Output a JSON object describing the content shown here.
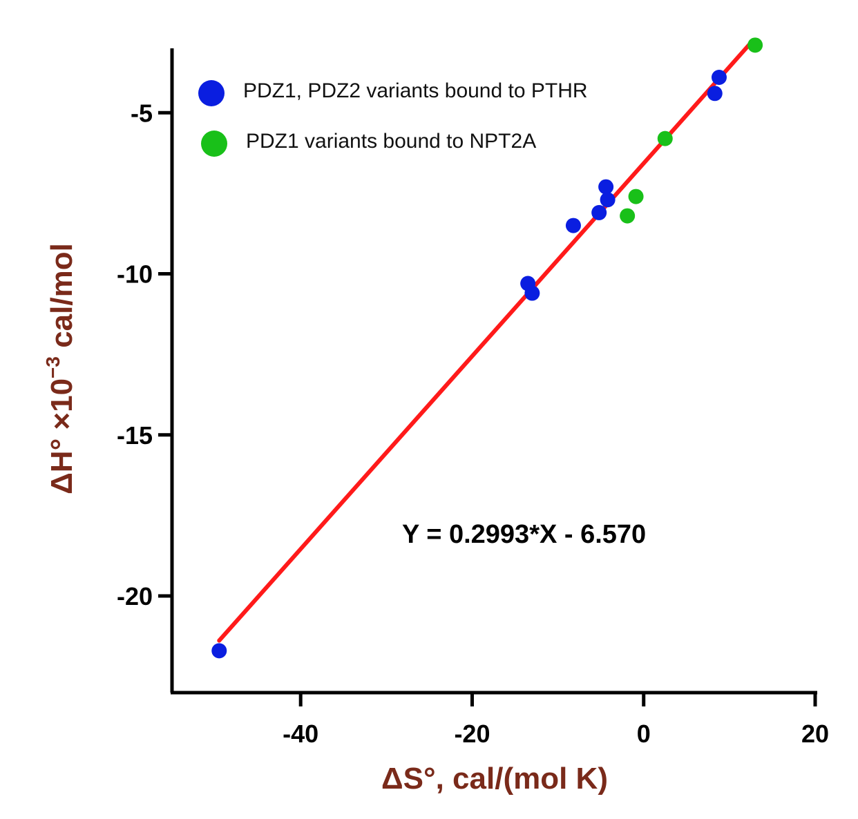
{
  "chart_data": {
    "type": "scatter",
    "title": "",
    "xlabel": "ΔS°, cal/(mol K)",
    "ylabel_main": "ΔH° ×10",
    "ylabel_exp": "−3",
    "ylabel_unit": " cal/mol",
    "xlim": [
      -55,
      20
    ],
    "ylim": [
      -23,
      -3
    ],
    "x_ticks": [
      -40,
      -20,
      0,
      20
    ],
    "x_tick_labels": [
      "-40",
      "-20",
      "0",
      "20"
    ],
    "y_ticks": [
      -5,
      -10,
      -15,
      -20
    ],
    "y_tick_labels": [
      "-5",
      "-10",
      "-15",
      "-20"
    ],
    "grid": false,
    "legend_position": "top-left",
    "series": [
      {
        "name": "PDZ1, PDZ2 variants bound to PTHR",
        "color": "#0a1ee0",
        "points": [
          {
            "x": 8.8,
            "y": -3.9
          },
          {
            "x": 8.3,
            "y": -4.4
          },
          {
            "x": -4.4,
            "y": -7.3
          },
          {
            "x": -4.2,
            "y": -7.7
          },
          {
            "x": -5.2,
            "y": -8.1
          },
          {
            "x": -8.2,
            "y": -8.5
          },
          {
            "x": -13.5,
            "y": -10.3
          },
          {
            "x": -13.0,
            "y": -10.6
          },
          {
            "x": -49.5,
            "y": -21.7
          }
        ]
      },
      {
        "name": "PDZ1 variants bound to NPT2A",
        "color": "#19c019",
        "points": [
          {
            "x": 13.0,
            "y": -2.9
          },
          {
            "x": 2.5,
            "y": -5.8
          },
          {
            "x": -0.9,
            "y": -7.6
          },
          {
            "x": -1.9,
            "y": -8.2
          }
        ]
      }
    ],
    "fit": {
      "slope": 0.2993,
      "intercept": -6.57,
      "x_range": [
        -49.5,
        12.5
      ],
      "color": "#ff1a1a",
      "equation_text": "Y = 0.2993*X - 6.570"
    }
  }
}
